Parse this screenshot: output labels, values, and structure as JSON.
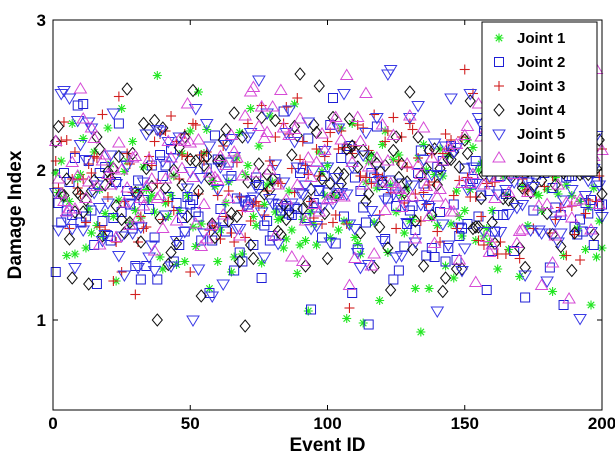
{
  "chart_data": {
    "type": "scatter",
    "title": "",
    "xlabel": "Event ID",
    "ylabel": "Damage Index",
    "xlim": [
      0,
      200
    ],
    "ylim": [
      0.4,
      3.0
    ],
    "xticks": [
      0,
      50,
      100,
      150,
      200
    ],
    "yticks": [
      1,
      2,
      3
    ],
    "xtick_labels": [
      "0",
      "50",
      "100",
      "150",
      "200"
    ],
    "ytick_labels": [
      "1",
      "2",
      "3"
    ],
    "grid": false,
    "legend_position": "top-right",
    "series": [
      {
        "name": "Joint 1",
        "marker": "asterisk",
        "color": "#22e622",
        "generator": {
          "seed": 11,
          "mean": 1.85,
          "sd": 0.32
        }
      },
      {
        "name": "Joint 2",
        "marker": "square",
        "color": "#1f1fd6",
        "generator": {
          "seed": 23,
          "mean": 1.78,
          "sd": 0.3
        }
      },
      {
        "name": "Joint 3",
        "marker": "plus",
        "color": "#d11f1f",
        "generator": {
          "seed": 37,
          "mean": 1.92,
          "sd": 0.3
        }
      },
      {
        "name": "Joint 4",
        "marker": "diamond",
        "color": "#111111",
        "generator": {
          "seed": 41,
          "mean": 1.88,
          "sd": 0.34
        }
      },
      {
        "name": "Joint 5",
        "marker": "triangle-down",
        "color": "#3a3ae6",
        "generator": {
          "seed": 53,
          "mean": 1.9,
          "sd": 0.33
        }
      },
      {
        "name": "Joint 6",
        "marker": "triangle-up",
        "color": "#d64bd6",
        "generator": {
          "seed": 67,
          "mean": 1.95,
          "sd": 0.32
        }
      }
    ]
  }
}
